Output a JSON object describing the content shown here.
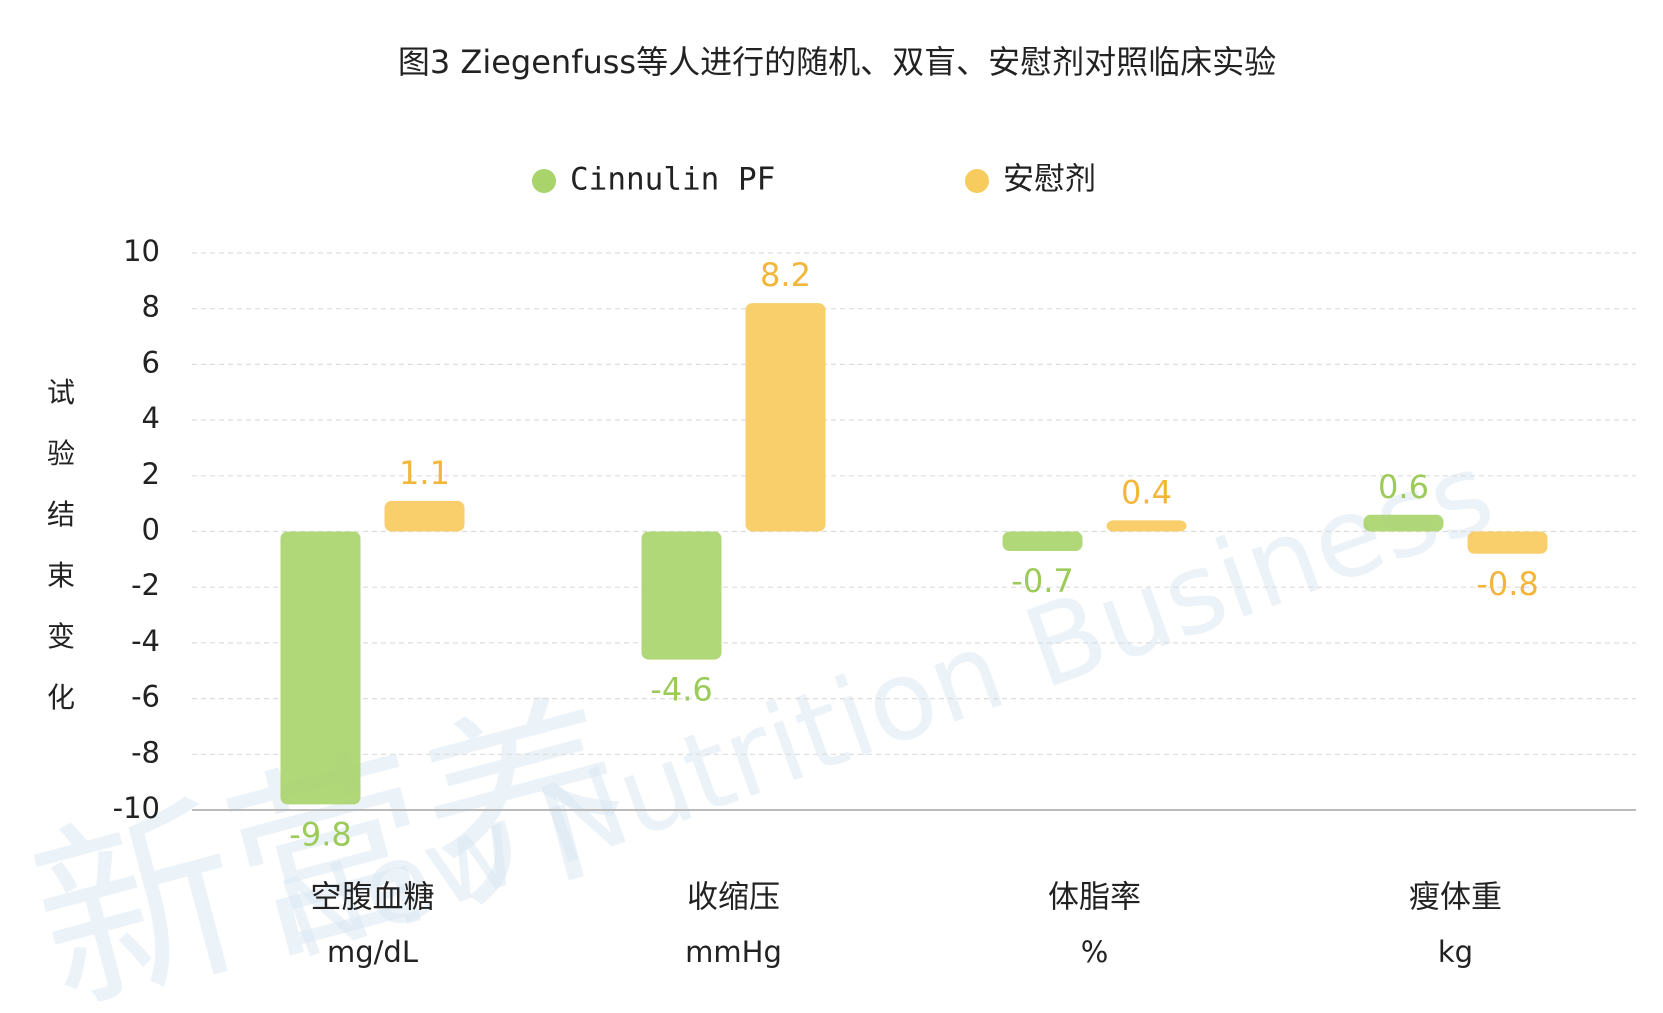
{
  "chart_data": {
    "type": "bar",
    "title": "图3 Ziegenfuss等人进行的随机、双盲、安慰剂对照临床实验",
    "y_label": "试验结束变化",
    "watermark": [
      "新营养",
      "New Nutrition Business"
    ],
    "categories": [
      [
        "空腹血糖",
        "mg/dL"
      ],
      [
        "收缩压",
        "mmHg"
      ],
      [
        "体脂率",
        "%"
      ],
      [
        "瘦体重",
        "kg"
      ]
    ],
    "series": [
      {
        "name": "Cinnulin PF",
        "color": "#a9d46c",
        "values": [
          -9.8,
          -4.6,
          -0.7,
          0.6
        ]
      },
      {
        "name": "安慰剂",
        "color": "#f7cb5e",
        "values": [
          1.1,
          8.2,
          0.4,
          -0.8
        ]
      }
    ],
    "ylim": [
      -10,
      10
    ],
    "yticks": [
      -10,
      -8,
      -6,
      -4,
      -2,
      0,
      2,
      4,
      6,
      8,
      10
    ],
    "grid": true
  }
}
